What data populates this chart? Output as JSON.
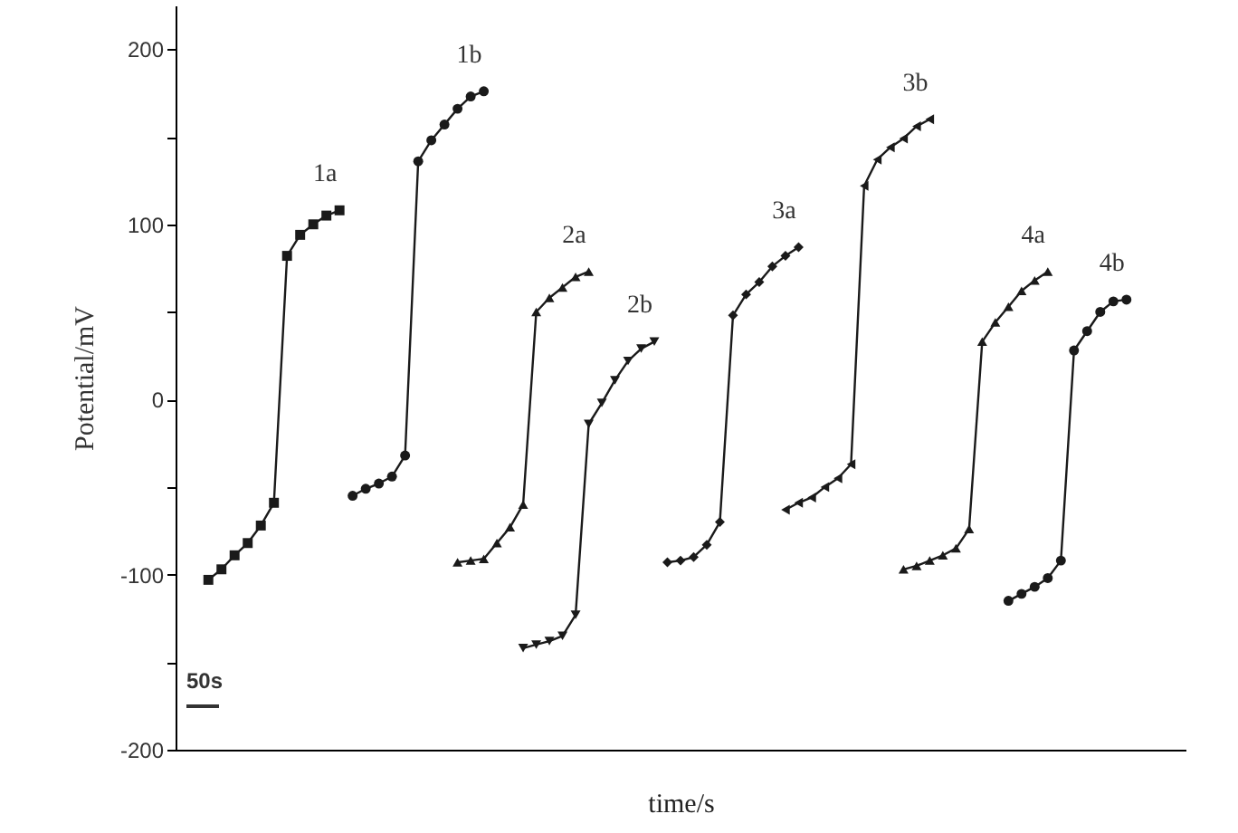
{
  "chart_data": {
    "type": "line",
    "xlabel": "time/s",
    "ylabel": "Potential/mV",
    "categories": [
      null,
      null,
      null,
      null,
      null,
      null,
      null,
      null,
      null,
      null,
      null,
      null,
      null,
      null,
      null,
      null,
      null,
      null,
      null,
      null,
      null,
      null,
      null,
      null,
      null,
      null,
      null,
      null,
      null,
      null,
      null,
      null,
      null,
      null,
      null,
      null,
      null,
      null,
      null,
      null,
      null,
      null,
      null,
      null,
      null,
      null,
      null,
      null,
      null,
      null,
      null,
      null,
      null,
      null,
      null,
      null,
      null,
      null,
      null,
      null,
      null,
      null,
      null,
      null,
      null,
      null,
      null,
      null,
      null,
      null,
      null,
      null,
      null,
      null,
      null,
      null,
      null
    ],
    "ylim": [
      -200,
      225
    ],
    "yticks": [
      -200,
      {
        "value": -150,
        "label": null
      },
      -100,
      {
        "value": -50,
        "label": null
      },
      0,
      {
        "value": 50,
        "label": null
      },
      100,
      {
        "value": 150,
        "label": null
      },
      200
    ],
    "tick_labels": "y",
    "grid": false,
    "line_style": "solid",
    "annotations": [
      "50s"
    ],
    "series": [
      {
        "name": "1a",
        "color": "#1a1a1a",
        "marker": "square",
        "values": [
          null,
          null,
          -103,
          -97,
          -89,
          -82,
          -72,
          -59,
          82,
          94,
          100,
          105,
          108,
          null,
          null,
          null,
          null,
          null,
          null,
          null,
          null,
          null,
          null,
          null,
          null,
          null,
          null,
          null,
          null,
          null,
          null,
          null,
          null,
          null,
          null,
          null,
          null,
          null,
          null,
          null,
          null,
          null,
          null,
          null,
          null,
          null,
          null,
          null,
          null,
          null,
          null,
          null,
          null,
          null,
          null,
          null,
          null,
          null,
          null,
          null,
          null,
          null,
          null,
          null,
          null,
          null,
          null,
          null,
          null,
          null,
          null,
          null,
          null,
          null,
          null,
          null,
          null
        ]
      },
      {
        "name": "1b",
        "color": "#1a1a1a",
        "marker": "circle",
        "values": [
          null,
          null,
          null,
          null,
          null,
          null,
          null,
          null,
          null,
          null,
          null,
          null,
          null,
          -55,
          -51,
          -48,
          -44,
          -32,
          136,
          148,
          157,
          166,
          173,
          176,
          null,
          null,
          null,
          null,
          null,
          null,
          null,
          null,
          null,
          null,
          null,
          null,
          null,
          null,
          null,
          null,
          null,
          null,
          null,
          null,
          null,
          null,
          null,
          null,
          null,
          null,
          null,
          null,
          null,
          null,
          null,
          null,
          null,
          null,
          null,
          null,
          null,
          null,
          null,
          null,
          null,
          null,
          null,
          null,
          null,
          null,
          null,
          null,
          null,
          null,
          null,
          null,
          null
        ]
      },
      {
        "name": "2a",
        "color": "#1a1a1a",
        "marker": "triangle-up",
        "values": [
          null,
          null,
          null,
          null,
          null,
          null,
          null,
          null,
          null,
          null,
          null,
          null,
          null,
          null,
          null,
          null,
          null,
          null,
          null,
          null,
          null,
          -93,
          -92,
          -91,
          -82,
          -73,
          -60,
          50,
          58,
          64,
          70,
          73,
          null,
          null,
          null,
          null,
          null,
          null,
          null,
          null,
          null,
          null,
          null,
          null,
          null,
          null,
          null,
          null,
          null,
          null,
          null,
          null,
          null,
          null,
          null,
          null,
          null,
          null,
          null,
          null,
          null,
          null,
          null,
          null,
          null,
          null,
          null,
          null,
          null,
          null,
          null,
          null,
          null,
          null,
          null,
          null,
          null
        ]
      },
      {
        "name": "2b",
        "color": "#1a1a1a",
        "marker": "triangle-down",
        "values": [
          null,
          null,
          null,
          null,
          null,
          null,
          null,
          null,
          null,
          null,
          null,
          null,
          null,
          null,
          null,
          null,
          null,
          null,
          null,
          null,
          null,
          null,
          null,
          null,
          null,
          null,
          -142,
          -140,
          -138,
          -135,
          -123,
          -14,
          -2,
          11,
          22,
          29,
          33,
          null,
          null,
          null,
          null,
          null,
          null,
          null,
          null,
          null,
          null,
          null,
          null,
          null,
          null,
          null,
          null,
          null,
          null,
          null,
          null,
          null,
          null,
          null,
          null,
          null,
          null,
          null,
          null,
          null,
          null,
          null,
          null,
          null,
          null,
          null,
          null,
          null,
          null,
          null,
          null
        ]
      },
      {
        "name": "3a",
        "color": "#1a1a1a",
        "marker": "diamond",
        "values": [
          null,
          null,
          null,
          null,
          null,
          null,
          null,
          null,
          null,
          null,
          null,
          null,
          null,
          null,
          null,
          null,
          null,
          null,
          null,
          null,
          null,
          null,
          null,
          null,
          null,
          null,
          null,
          null,
          null,
          null,
          null,
          null,
          null,
          null,
          null,
          null,
          null,
          -93,
          -92,
          -90,
          -83,
          -70,
          48,
          60,
          67,
          76,
          82,
          87,
          null,
          null,
          null,
          null,
          null,
          null,
          null,
          null,
          null,
          null,
          null,
          null,
          null,
          null,
          null,
          null,
          null,
          null,
          null,
          null,
          null,
          null,
          null,
          null,
          null,
          null,
          null,
          null,
          null
        ]
      },
      {
        "name": "3b",
        "color": "#1a1a1a",
        "marker": "triangle-left",
        "values": [
          null,
          null,
          null,
          null,
          null,
          null,
          null,
          null,
          null,
          null,
          null,
          null,
          null,
          null,
          null,
          null,
          null,
          null,
          null,
          null,
          null,
          null,
          null,
          null,
          null,
          null,
          null,
          null,
          null,
          null,
          null,
          null,
          null,
          null,
          null,
          null,
          null,
          null,
          null,
          null,
          null,
          null,
          null,
          null,
          null,
          null,
          -63,
          -59,
          -56,
          -50,
          -45,
          -37,
          122,
          137,
          144,
          149,
          156,
          160,
          null,
          null,
          null,
          null,
          null,
          null,
          null,
          null,
          null,
          null,
          null,
          null,
          null,
          null,
          null,
          null,
          null,
          null,
          null
        ]
      },
      {
        "name": "4a",
        "color": "#1a1a1a",
        "marker": "triangle-up",
        "values": [
          null,
          null,
          null,
          null,
          null,
          null,
          null,
          null,
          null,
          null,
          null,
          null,
          null,
          null,
          null,
          null,
          null,
          null,
          null,
          null,
          null,
          null,
          null,
          null,
          null,
          null,
          null,
          null,
          null,
          null,
          null,
          null,
          null,
          null,
          null,
          null,
          null,
          null,
          null,
          null,
          null,
          null,
          null,
          null,
          null,
          null,
          null,
          null,
          null,
          null,
          null,
          null,
          null,
          null,
          null,
          -97,
          -95,
          -92,
          -89,
          -85,
          -74,
          33,
          44,
          53,
          62,
          68,
          73,
          null,
          null,
          null,
          null,
          null,
          null,
          null,
          null,
          null,
          null
        ]
      },
      {
        "name": "4b",
        "color": "#1a1a1a",
        "marker": "circle",
        "values": [
          null,
          null,
          null,
          null,
          null,
          null,
          null,
          null,
          null,
          null,
          null,
          null,
          null,
          null,
          null,
          null,
          null,
          null,
          null,
          null,
          null,
          null,
          null,
          null,
          null,
          null,
          null,
          null,
          null,
          null,
          null,
          null,
          null,
          null,
          null,
          null,
          null,
          null,
          null,
          null,
          null,
          null,
          null,
          null,
          null,
          null,
          null,
          null,
          null,
          null,
          null,
          null,
          null,
          null,
          null,
          null,
          null,
          null,
          null,
          null,
          null,
          null,
          null,
          -115,
          -111,
          -107,
          -102,
          -92,
          28,
          39,
          50,
          56,
          57,
          null,
          null,
          null,
          null
        ]
      }
    ]
  }
}
